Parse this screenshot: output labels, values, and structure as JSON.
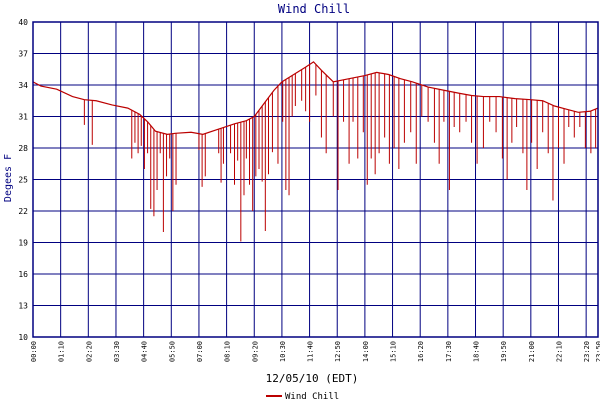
{
  "chart_data": {
    "type": "line",
    "title": "Wind Chill",
    "xlabel": "12/05/10 (EDT)",
    "ylabel": "Degees F",
    "ylim": [
      10,
      40
    ],
    "yticks": [
      10,
      13,
      16,
      19,
      22,
      25,
      28,
      31,
      34,
      37,
      40
    ],
    "xlim_minutes": [
      0,
      1430
    ],
    "xticks": [
      "00:00",
      "01:10",
      "02:20",
      "03:30",
      "04:40",
      "05:50",
      "07:00",
      "08:10",
      "09:20",
      "10:30",
      "11:40",
      "12:50",
      "14:00",
      "15:10",
      "16:20",
      "17:30",
      "18:40",
      "19:50",
      "21:00",
      "22:10",
      "23:20",
      "23:50"
    ],
    "grid": true,
    "legend": {
      "position": "bottom-center",
      "entries": [
        "Wind Chill"
      ]
    },
    "colors": {
      "series": "#bb0000",
      "grid": "#000080",
      "title": "#000080",
      "text": "#000000"
    },
    "series": [
      {
        "name": "Wind Chill",
        "baseline": [
          [
            0,
            34.3
          ],
          [
            20,
            33.9
          ],
          [
            60,
            33.6
          ],
          [
            100,
            32.9
          ],
          [
            130,
            32.6
          ],
          [
            160,
            32.5
          ],
          [
            200,
            32.1
          ],
          [
            240,
            31.8
          ],
          [
            270,
            31.2
          ],
          [
            290,
            30.5
          ],
          [
            310,
            29.6
          ],
          [
            340,
            29.3
          ],
          [
            360,
            29.4
          ],
          [
            400,
            29.5
          ],
          [
            430,
            29.3
          ],
          [
            470,
            29.8
          ],
          [
            510,
            30.3
          ],
          [
            540,
            30.6
          ],
          [
            560,
            31.0
          ],
          [
            590,
            32.5
          ],
          [
            610,
            33.5
          ],
          [
            630,
            34.3
          ],
          [
            660,
            35.0
          ],
          [
            690,
            35.7
          ],
          [
            710,
            36.2
          ],
          [
            730,
            35.4
          ],
          [
            760,
            34.3
          ],
          [
            800,
            34.6
          ],
          [
            840,
            34.9
          ],
          [
            870,
            35.2
          ],
          [
            900,
            35.0
          ],
          [
            930,
            34.6
          ],
          [
            960,
            34.3
          ],
          [
            1000,
            33.8
          ],
          [
            1040,
            33.5
          ],
          [
            1080,
            33.2
          ],
          [
            1110,
            33.0
          ],
          [
            1140,
            32.9
          ],
          [
            1180,
            32.9
          ],
          [
            1220,
            32.7
          ],
          [
            1260,
            32.6
          ],
          [
            1290,
            32.5
          ],
          [
            1320,
            32.0
          ],
          [
            1350,
            31.7
          ],
          [
            1380,
            31.4
          ],
          [
            1410,
            31.5
          ],
          [
            1430,
            31.8
          ]
        ],
        "dips": [
          [
            130,
            30.2
          ],
          [
            150,
            28.3
          ],
          [
            250,
            27.0
          ],
          [
            258,
            28.5
          ],
          [
            266,
            27.5
          ],
          [
            274,
            28.2
          ],
          [
            282,
            26.0
          ],
          [
            290,
            27.5
          ],
          [
            298,
            22.2
          ],
          [
            306,
            21.5
          ],
          [
            314,
            24.0
          ],
          [
            322,
            27.5
          ],
          [
            330,
            20.0
          ],
          [
            338,
            25.3
          ],
          [
            346,
            27.0
          ],
          [
            354,
            22.0
          ],
          [
            362,
            24.5
          ],
          [
            420,
            27.8
          ],
          [
            428,
            24.3
          ],
          [
            436,
            25.3
          ],
          [
            470,
            27.5
          ],
          [
            476,
            24.7
          ],
          [
            482,
            26.5
          ],
          [
            500,
            27.5
          ],
          [
            510,
            24.5
          ],
          [
            518,
            26.8
          ],
          [
            526,
            19.1
          ],
          [
            534,
            23.5
          ],
          [
            540,
            27.0
          ],
          [
            548,
            24.5
          ],
          [
            556,
            22.0
          ],
          [
            564,
            25.3
          ],
          [
            572,
            26.0
          ],
          [
            580,
            24.8
          ],
          [
            588,
            20.1
          ],
          [
            596,
            25.5
          ],
          [
            606,
            27.6
          ],
          [
            620,
            26.5
          ],
          [
            632,
            30.5
          ],
          [
            640,
            24.0
          ],
          [
            648,
            23.5
          ],
          [
            656,
            31.0
          ],
          [
            664,
            32.0
          ],
          [
            680,
            32.5
          ],
          [
            690,
            31.5
          ],
          [
            700,
            30.5
          ],
          [
            716,
            33.0
          ],
          [
            730,
            29.0
          ],
          [
            742,
            27.5
          ],
          [
            760,
            31.0
          ],
          [
            772,
            24.0
          ],
          [
            786,
            30.5
          ],
          [
            800,
            26.5
          ],
          [
            810,
            30.5
          ],
          [
            822,
            27.0
          ],
          [
            836,
            29.5
          ],
          [
            846,
            24.5
          ],
          [
            856,
            27.0
          ],
          [
            866,
            25.5
          ],
          [
            876,
            27.5
          ],
          [
            890,
            29.0
          ],
          [
            902,
            26.5
          ],
          [
            914,
            28.0
          ],
          [
            926,
            26.0
          ],
          [
            940,
            28.5
          ],
          [
            956,
            29.5
          ],
          [
            970,
            26.5
          ],
          [
            984,
            31.0
          ],
          [
            1000,
            30.5
          ],
          [
            1016,
            28.5
          ],
          [
            1028,
            26.5
          ],
          [
            1040,
            30.5
          ],
          [
            1054,
            24.0
          ],
          [
            1066,
            30.0
          ],
          [
            1080,
            29.5
          ],
          [
            1096,
            30.5
          ],
          [
            1110,
            28.5
          ],
          [
            1124,
            26.5
          ],
          [
            1140,
            28.0
          ],
          [
            1156,
            30.5
          ],
          [
            1172,
            29.5
          ],
          [
            1188,
            27.0
          ],
          [
            1200,
            25.0
          ],
          [
            1212,
            28.5
          ],
          [
            1224,
            30.0
          ],
          [
            1240,
            27.5
          ],
          [
            1250,
            24.0
          ],
          [
            1262,
            28.5
          ],
          [
            1276,
            26.0
          ],
          [
            1290,
            29.5
          ],
          [
            1304,
            27.5
          ],
          [
            1316,
            23.0
          ],
          [
            1330,
            28.0
          ],
          [
            1344,
            26.5
          ],
          [
            1356,
            30.0
          ],
          [
            1370,
            29.0
          ],
          [
            1384,
            30.0
          ],
          [
            1398,
            28.0
          ],
          [
            1412,
            27.5
          ],
          [
            1424,
            28.0
          ]
        ]
      }
    ]
  }
}
